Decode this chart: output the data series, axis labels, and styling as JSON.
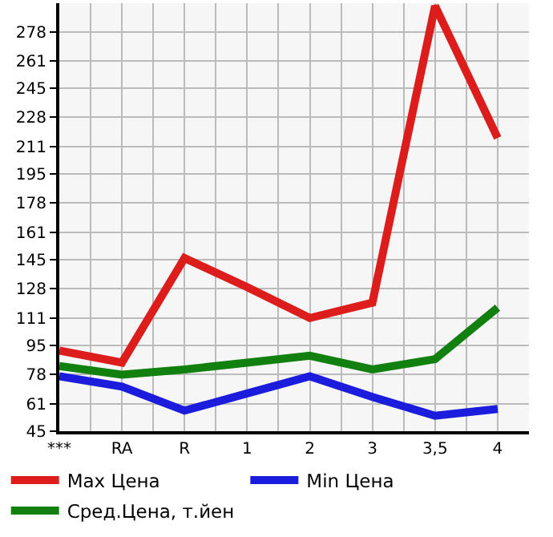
{
  "chart_data": {
    "type": "line",
    "categories": [
      "***",
      "RA",
      "R",
      "1",
      "2",
      "3",
      "3,5",
      "4"
    ],
    "series": [
      {
        "name": "Max Цена",
        "color": "#dd1c1c",
        "values": [
          92,
          85,
          146,
          129,
          111,
          120,
          293,
          216
        ]
      },
      {
        "name": "Min Цена",
        "color": "#1c1cdd",
        "values": [
          77,
          71,
          57,
          67,
          77,
          65,
          54,
          58
        ]
      },
      {
        "name": "Сред.Цена, т.йен",
        "color": "#11800f",
        "values": [
          83,
          78,
          81,
          85,
          89,
          81,
          87,
          117
        ]
      }
    ],
    "ylim": [
      45,
      294.6
    ],
    "yticks": [
      45,
      61,
      78,
      95,
      111,
      128,
      145,
      161,
      178,
      195,
      211,
      228,
      245,
      261,
      278
    ],
    "grid": true,
    "legend": "bottom",
    "marker": "none",
    "line_style": "solid"
  }
}
